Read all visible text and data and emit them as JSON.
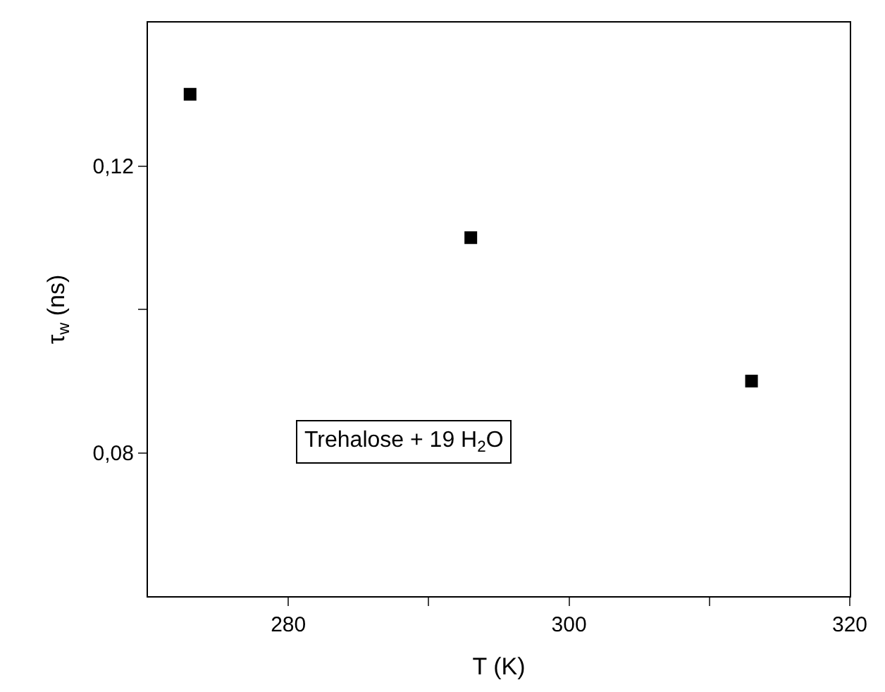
{
  "chart_data": {
    "type": "scatter",
    "xlabel": "T (K)",
    "ylabel": "τ$_{w}$ (ns)",
    "x": [
      273,
      293,
      313
    ],
    "series": [
      {
        "color": "#000000",
        "values": [
          0.13,
          0.11,
          0.09
        ]
      }
    ],
    "xlim": [
      270,
      320
    ],
    "xticks": [
      280,
      {
        "value": 290,
        "label": null
      },
      300,
      {
        "value": 310,
        "label": null
      },
      320
    ],
    "ylim": [
      0.06,
      0.14
    ],
    "yticks": [
      {
        "value": 0.08,
        "label": "0,08"
      },
      {
        "value": 0.1,
        "label": null
      },
      {
        "value": 0.12,
        "label": "0,12"
      }
    ],
    "annotations": [
      "Trehalose + 19 H$_{2}$O"
    ],
    "marker": "square"
  }
}
